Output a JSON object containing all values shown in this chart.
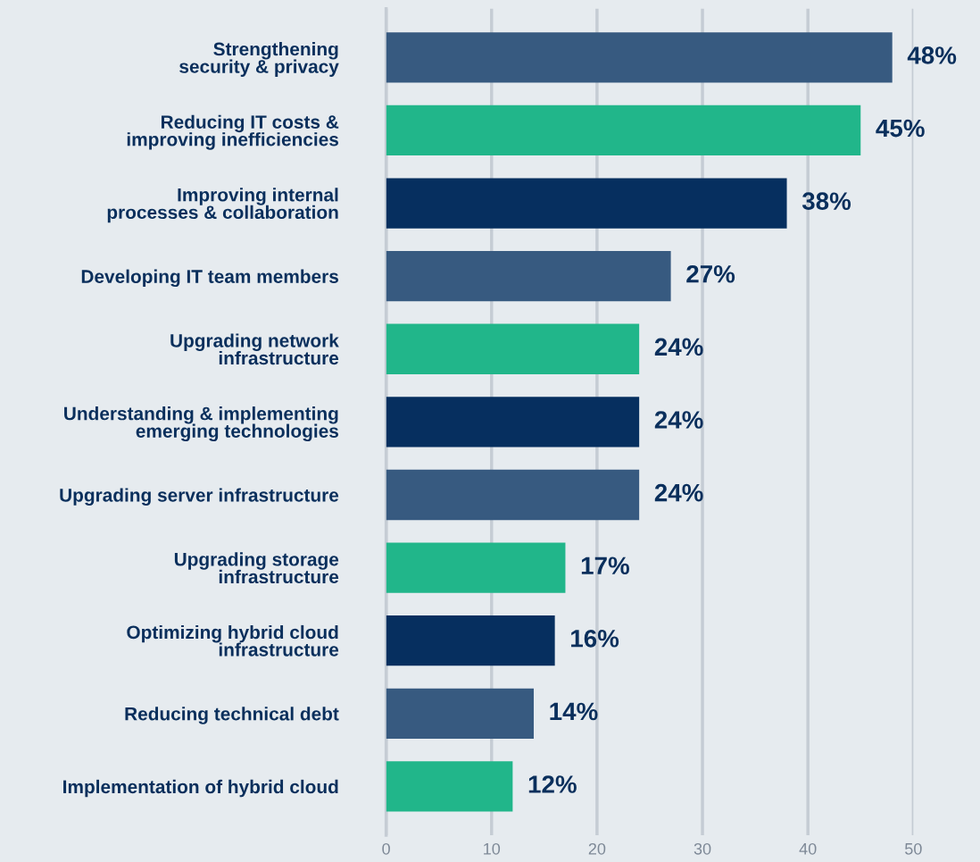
{
  "chart_data": {
    "type": "bar",
    "orientation": "horizontal",
    "categories": [
      "Strengthening\nsecurity & privacy",
      "Reducing IT costs &\nimproving inefficiencies",
      "Improving internal\nprocesses & collaboration",
      "Developing IT team members",
      "Upgrading network\ninfrastructure",
      "Understanding & implementing\nemerging technologies",
      "Upgrading server infrastructure",
      "Upgrading storage\ninfrastructure",
      "Optimizing hybrid cloud\ninfrastructure",
      "Reducing technical debt",
      "Implementation of hybrid cloud"
    ],
    "values": [
      48,
      45,
      38,
      27,
      24,
      24,
      24,
      17,
      16,
      14,
      12
    ],
    "value_labels": [
      "48%",
      "45%",
      "38%",
      "27%",
      "24%",
      "24%",
      "24%",
      "17%",
      "16%",
      "14%",
      "12%"
    ],
    "colors": [
      "#375a80",
      "#21b68a",
      "#062f5f",
      "#375a80",
      "#21b68a",
      "#062f5f",
      "#375a80",
      "#21b68a",
      "#062f5f",
      "#375a80",
      "#21b68a"
    ],
    "xlim": [
      0,
      50
    ],
    "xticks": [
      0,
      10,
      20,
      30,
      40,
      50
    ],
    "grid": "x"
  }
}
